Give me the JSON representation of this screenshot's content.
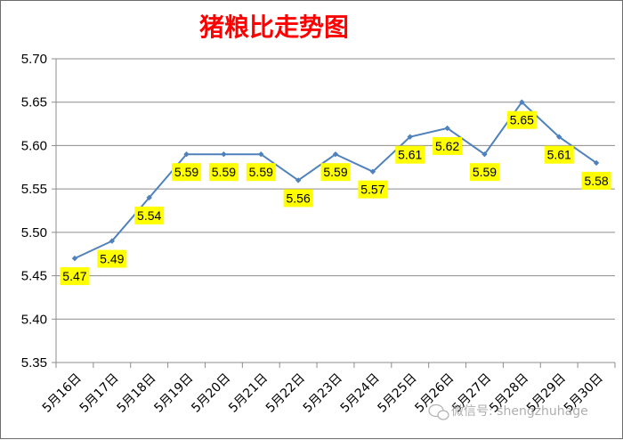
{
  "chart_data": {
    "type": "line",
    "title": "猪粮比走势图",
    "xlabel": "",
    "ylabel": "",
    "categories": [
      "5月16日",
      "5月17日",
      "5月18日",
      "5月19日",
      "5月20日",
      "5月21日",
      "5月22日",
      "5月23日",
      "5月24日",
      "5月25日",
      "5月26日",
      "5月27日",
      "5月28日",
      "5月29日",
      "5月30日"
    ],
    "series": [
      {
        "values": [
          5.47,
          5.49,
          5.54,
          5.59,
          5.59,
          5.59,
          5.56,
          5.59,
          5.57,
          5.61,
          5.62,
          5.59,
          5.65,
          5.61,
          5.58
        ]
      }
    ],
    "ylim": [
      5.35,
      5.7
    ],
    "yticks": [
      "5.35",
      "5.40",
      "5.45",
      "5.50",
      "5.55",
      "5.60",
      "5.65",
      "5.70"
    ],
    "grid": "horizontal",
    "legend": "none",
    "line_color": "#4f81bd",
    "label_bg_color": "#ffff00"
  },
  "watermark": {
    "text": "微信号: shengzhuhage",
    "icon": "wechat-icon"
  }
}
